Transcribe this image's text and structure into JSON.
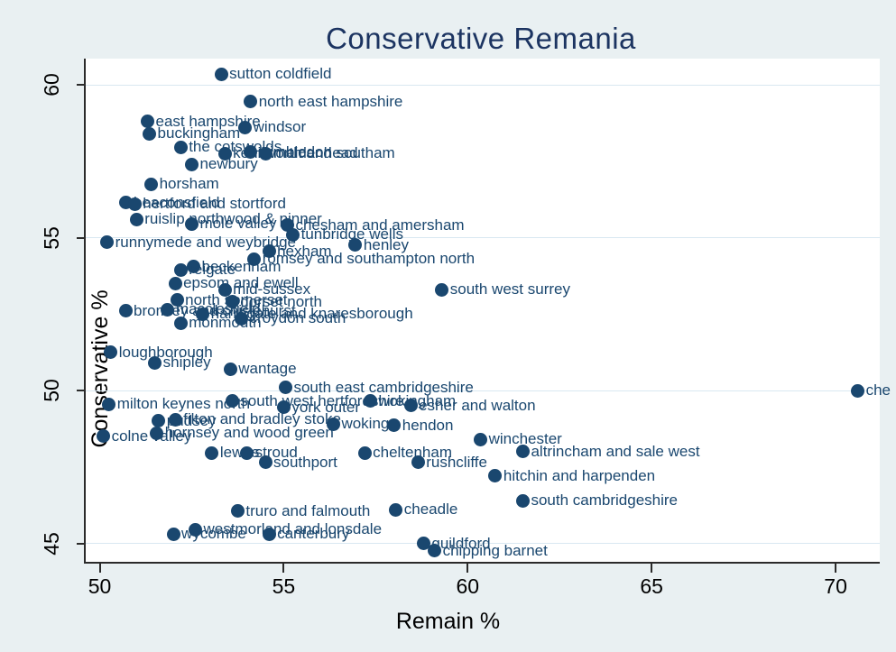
{
  "title": "Conservative Remania",
  "chart_data": {
    "type": "scatter",
    "title": "Conservative Remania",
    "xlabel": "Remain %",
    "ylabel": "Conservative %",
    "xlim": [
      49.6,
      71.2
    ],
    "ylim": [
      44.3,
      60.9
    ],
    "x_ticks": [
      50,
      55,
      60,
      65,
      70
    ],
    "y_ticks": [
      45,
      50,
      55,
      60
    ],
    "grid": "horizontal-only",
    "legend": "none",
    "marker_color": "#1a476f",
    "label_color": "#1a476f",
    "background_color": "#e9f0f2",
    "plot_background_color": "#ffffff",
    "gridline_color": "#d9e8f1",
    "points": [
      {
        "label": "sutton coldfield",
        "remain": 53.3,
        "con": 60.35
      },
      {
        "label": "north east hampshire",
        "remain": 54.1,
        "con": 59.45
      },
      {
        "label": "east hampshire",
        "remain": 51.3,
        "con": 58.8
      },
      {
        "label": "buckingham",
        "remain": 51.35,
        "con": 58.4
      },
      {
        "label": "windsor",
        "remain": 53.95,
        "con": 58.6
      },
      {
        "label": "the cotswolds",
        "remain": 52.2,
        "con": 57.95
      },
      {
        "label": "kenilworth and southam",
        "remain": 53.4,
        "con": 57.75
      },
      {
        "label": "wimbledon",
        "remain": 54.1,
        "con": 57.8
      },
      {
        "label": "maidenhead",
        "remain": 54.5,
        "con": 57.75
      },
      {
        "label": "newbury",
        "remain": 52.5,
        "con": 57.4
      },
      {
        "label": "horsham",
        "remain": 51.4,
        "con": 56.75
      },
      {
        "label": "beaconsfield",
        "remain": 50.7,
        "con": 56.15
      },
      {
        "label": "hertford and stortford",
        "remain": 50.95,
        "con": 56.1
      },
      {
        "label": "ruislip northwood & pinner",
        "remain": 51.0,
        "con": 55.6
      },
      {
        "label": "mole valley",
        "remain": 52.5,
        "con": 55.45
      },
      {
        "label": "chesham and amersham",
        "remain": 55.1,
        "con": 55.4
      },
      {
        "label": "tunbridge wells",
        "remain": 55.25,
        "con": 55.1
      },
      {
        "label": "runnymede and weybridge",
        "remain": 50.2,
        "con": 54.85
      },
      {
        "label": "henley",
        "remain": 56.95,
        "con": 54.75
      },
      {
        "label": "hexham",
        "remain": 54.6,
        "con": 54.55
      },
      {
        "label": "romsey and southampton north",
        "remain": 54.2,
        "con": 54.3
      },
      {
        "label": "beckenham",
        "remain": 52.55,
        "con": 54.05
      },
      {
        "label": "reigate",
        "remain": 52.2,
        "con": 53.95
      },
      {
        "label": "epsom and ewell",
        "remain": 52.05,
        "con": 53.5
      },
      {
        "label": "mid-sussex",
        "remain": 53.4,
        "con": 53.3
      },
      {
        "label": "north somerset",
        "remain": 52.1,
        "con": 52.95
      },
      {
        "label": "dorset north",
        "remain": 53.6,
        "con": 52.9
      },
      {
        "label": "south west surrey",
        "remain": 59.3,
        "con": 53.3
      },
      {
        "label": "bromley and chislehurst",
        "remain": 50.7,
        "con": 52.6
      },
      {
        "label": "macclesfield",
        "remain": 51.85,
        "con": 52.65
      },
      {
        "label": "harrogate and knaresborough",
        "remain": 52.8,
        "con": 52.5
      },
      {
        "label": "monmouth",
        "remain": 52.2,
        "con": 52.2
      },
      {
        "label": "croydon south",
        "remain": 53.85,
        "con": 52.35
      },
      {
        "label": "loughborough",
        "remain": 50.3,
        "con": 51.25
      },
      {
        "label": "shipley",
        "remain": 51.5,
        "con": 50.9
      },
      {
        "label": "wantage",
        "remain": 53.55,
        "con": 50.7
      },
      {
        "label": "south east cambridgeshire",
        "remain": 55.05,
        "con": 50.1
      },
      {
        "label": "milton keynes north",
        "remain": 50.25,
        "con": 49.55
      },
      {
        "label": "south west hertfordshire",
        "remain": 53.6,
        "con": 49.65
      },
      {
        "label": "york outer",
        "remain": 55.0,
        "con": 49.45
      },
      {
        "label": "wokingham",
        "remain": 57.35,
        "con": 49.65
      },
      {
        "label": "esher and walton",
        "remain": 58.45,
        "con": 49.5
      },
      {
        "label": "pudsey",
        "remain": 51.6,
        "con": 49.0
      },
      {
        "label": "filton and bradley stoke",
        "remain": 52.05,
        "con": 49.05
      },
      {
        "label": "woking",
        "remain": 56.35,
        "con": 48.9
      },
      {
        "label": "hendon",
        "remain": 58.0,
        "con": 48.85
      },
      {
        "label": "colne valley",
        "remain": 50.1,
        "con": 48.5
      },
      {
        "label": "hornsey and wood green",
        "remain": 51.55,
        "con": 48.6
      },
      {
        "label": "winchester",
        "remain": 60.35,
        "con": 48.4
      },
      {
        "label": "lewes",
        "remain": 53.05,
        "con": 47.95
      },
      {
        "label": "stroud",
        "remain": 54.0,
        "con": 47.95
      },
      {
        "label": "southport",
        "remain": 54.5,
        "con": 47.65
      },
      {
        "label": "cheltenham",
        "remain": 57.2,
        "con": 47.95
      },
      {
        "label": "rushcliffe",
        "remain": 58.65,
        "con": 47.65
      },
      {
        "label": "altrincham and sale west",
        "remain": 61.5,
        "con": 48.0
      },
      {
        "label": "hitchin and harpenden",
        "remain": 60.75,
        "con": 47.2
      },
      {
        "label": "south cambridgeshire",
        "remain": 61.5,
        "con": 46.4
      },
      {
        "label": "truro and falmouth",
        "remain": 53.75,
        "con": 46.05
      },
      {
        "label": "cheadle",
        "remain": 58.05,
        "con": 46.1
      },
      {
        "label": "westmorland and lonsdale",
        "remain": 52.6,
        "con": 45.45
      },
      {
        "label": "wycombe",
        "remain": 52.0,
        "con": 45.3
      },
      {
        "label": "canterbury",
        "remain": 54.6,
        "con": 45.3
      },
      {
        "label": "guildford",
        "remain": 58.8,
        "con": 45.0
      },
      {
        "label": "chipping barnet",
        "remain": 59.1,
        "con": 44.75
      },
      {
        "label": "che",
        "remain": 70.6,
        "con": 50.0
      }
    ]
  }
}
